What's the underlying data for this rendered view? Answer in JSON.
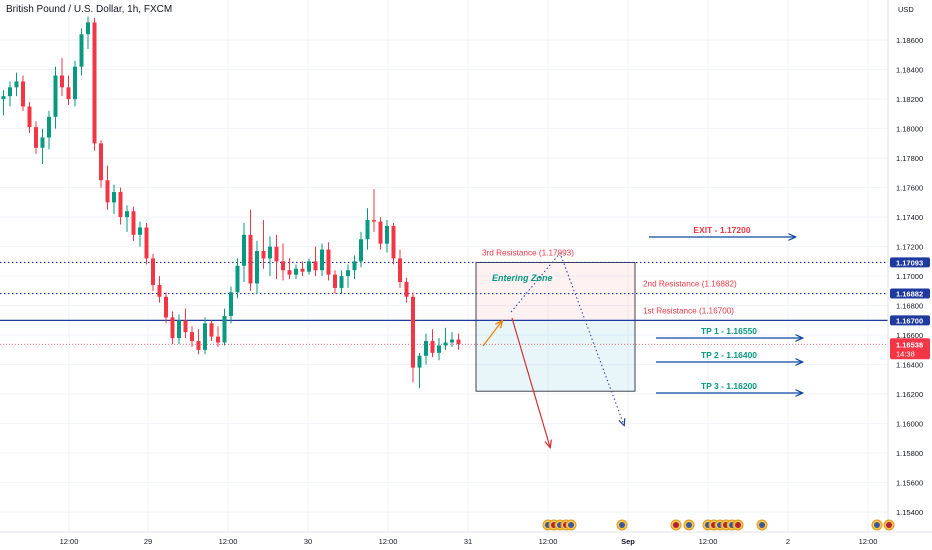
{
  "chart_data": {
    "type": "candlestick",
    "title": "British Pound / U.S. Dollar, 1h, FXCM",
    "currency": "USD",
    "ylim": [
      1.1535,
      1.1875
    ],
    "y_ticks": [
      "1.18600",
      "1.18400",
      "1.18200",
      "1.18000",
      "1.17800",
      "1.17600",
      "1.17400",
      "1.17200",
      "1.17000",
      "1.16800",
      "1.16600",
      "1.16400",
      "1.16200",
      "1.16000",
      "1.15800",
      "1.15600",
      "1.15400"
    ],
    "x_ticks": [
      "12:00",
      "29",
      "12:00",
      "30",
      "12:00",
      "31",
      "12:00",
      "Sep",
      "12:00",
      "2",
      "12:00"
    ],
    "current_price": "1.16538",
    "countdown": "14:38",
    "colors": {
      "up": "#089981",
      "down": "#f23645",
      "resistance": "#f23645",
      "target": "#0d47a1",
      "zone_text": "#089981",
      "price_line": "#1e3a9e"
    },
    "candles": [
      {
        "o": 1.182,
        "h": 1.1826,
        "l": 1.1809,
        "c": 1.1822
      },
      {
        "o": 1.1822,
        "h": 1.1832,
        "l": 1.1815,
        "c": 1.1828
      },
      {
        "o": 1.1828,
        "h": 1.1838,
        "l": 1.1822,
        "c": 1.1832
      },
      {
        "o": 1.1832,
        "h": 1.1836,
        "l": 1.1812,
        "c": 1.1815
      },
      {
        "o": 1.1815,
        "h": 1.1818,
        "l": 1.1797,
        "c": 1.1801
      },
      {
        "o": 1.1801,
        "h": 1.1805,
        "l": 1.1783,
        "c": 1.1787
      },
      {
        "o": 1.1787,
        "h": 1.18,
        "l": 1.1776,
        "c": 1.1794
      },
      {
        "o": 1.1794,
        "h": 1.1812,
        "l": 1.1786,
        "c": 1.1808
      },
      {
        "o": 1.1808,
        "h": 1.1842,
        "l": 1.18,
        "c": 1.1836
      },
      {
        "o": 1.1836,
        "h": 1.1848,
        "l": 1.1822,
        "c": 1.1828
      },
      {
        "o": 1.1828,
        "h": 1.1836,
        "l": 1.1816,
        "c": 1.182
      },
      {
        "o": 1.182,
        "h": 1.1846,
        "l": 1.1815,
        "c": 1.1842
      },
      {
        "o": 1.1842,
        "h": 1.1868,
        "l": 1.1836,
        "c": 1.1864
      },
      {
        "o": 1.1864,
        "h": 1.1876,
        "l": 1.1854,
        "c": 1.1872
      },
      {
        "o": 1.1872,
        "h": 1.1875,
        "l": 1.1785,
        "c": 1.179
      },
      {
        "o": 1.179,
        "h": 1.1792,
        "l": 1.176,
        "c": 1.1765
      },
      {
        "o": 1.1765,
        "h": 1.1775,
        "l": 1.1745,
        "c": 1.175
      },
      {
        "o": 1.175,
        "h": 1.1762,
        "l": 1.1742,
        "c": 1.1757
      },
      {
        "o": 1.1757,
        "h": 1.176,
        "l": 1.1735,
        "c": 1.174
      },
      {
        "o": 1.174,
        "h": 1.1748,
        "l": 1.173,
        "c": 1.1744
      },
      {
        "o": 1.1744,
        "h": 1.1747,
        "l": 1.1724,
        "c": 1.1728
      },
      {
        "o": 1.1728,
        "h": 1.1737,
        "l": 1.172,
        "c": 1.1733
      },
      {
        "o": 1.1733,
        "h": 1.1736,
        "l": 1.1708,
        "c": 1.1712
      },
      {
        "o": 1.1712,
        "h": 1.1715,
        "l": 1.169,
        "c": 1.1694
      },
      {
        "o": 1.1694,
        "h": 1.17,
        "l": 1.1682,
        "c": 1.1686
      },
      {
        "o": 1.1686,
        "h": 1.1689,
        "l": 1.1668,
        "c": 1.1672
      },
      {
        "o": 1.1672,
        "h": 1.1676,
        "l": 1.1654,
        "c": 1.1658
      },
      {
        "o": 1.1658,
        "h": 1.1674,
        "l": 1.1654,
        "c": 1.167
      },
      {
        "o": 1.167,
        "h": 1.1678,
        "l": 1.1658,
        "c": 1.1662
      },
      {
        "o": 1.1662,
        "h": 1.1666,
        "l": 1.1652,
        "c": 1.1656
      },
      {
        "o": 1.1656,
        "h": 1.1664,
        "l": 1.1647,
        "c": 1.165
      },
      {
        "o": 1.165,
        "h": 1.1672,
        "l": 1.1647,
        "c": 1.1668
      },
      {
        "o": 1.1668,
        "h": 1.167,
        "l": 1.1656,
        "c": 1.1659
      },
      {
        "o": 1.1659,
        "h": 1.1666,
        "l": 1.1652,
        "c": 1.1655
      },
      {
        "o": 1.1655,
        "h": 1.1678,
        "l": 1.1653,
        "c": 1.1673
      },
      {
        "o": 1.1673,
        "h": 1.1693,
        "l": 1.1668,
        "c": 1.1689
      },
      {
        "o": 1.1689,
        "h": 1.1712,
        "l": 1.1685,
        "c": 1.1707
      },
      {
        "o": 1.1707,
        "h": 1.1736,
        "l": 1.1696,
        "c": 1.1728
      },
      {
        "o": 1.1728,
        "h": 1.1745,
        "l": 1.169,
        "c": 1.1695
      },
      {
        "o": 1.1695,
        "h": 1.1724,
        "l": 1.1688,
        "c": 1.1717
      },
      {
        "o": 1.1717,
        "h": 1.1738,
        "l": 1.1705,
        "c": 1.1712
      },
      {
        "o": 1.1712,
        "h": 1.1727,
        "l": 1.17,
        "c": 1.172
      },
      {
        "o": 1.172,
        "h": 1.1728,
        "l": 1.1698,
        "c": 1.171
      },
      {
        "o": 1.171,
        "h": 1.1722,
        "l": 1.1697,
        "c": 1.1704
      },
      {
        "o": 1.1704,
        "h": 1.1712,
        "l": 1.1698,
        "c": 1.1701
      },
      {
        "o": 1.1701,
        "h": 1.1708,
        "l": 1.1698,
        "c": 1.1705
      },
      {
        "o": 1.1705,
        "h": 1.171,
        "l": 1.17,
        "c": 1.1703
      },
      {
        "o": 1.1703,
        "h": 1.1712,
        "l": 1.1701,
        "c": 1.171
      },
      {
        "o": 1.171,
        "h": 1.172,
        "l": 1.17,
        "c": 1.1704
      },
      {
        "o": 1.1704,
        "h": 1.1722,
        "l": 1.17,
        "c": 1.1718
      },
      {
        "o": 1.1718,
        "h": 1.1723,
        "l": 1.1697,
        "c": 1.1701
      },
      {
        "o": 1.1701,
        "h": 1.1704,
        "l": 1.1688,
        "c": 1.1692
      },
      {
        "o": 1.1692,
        "h": 1.1704,
        "l": 1.1688,
        "c": 1.17
      },
      {
        "o": 1.17,
        "h": 1.1708,
        "l": 1.1692,
        "c": 1.1704
      },
      {
        "o": 1.1704,
        "h": 1.1714,
        "l": 1.1698,
        "c": 1.171
      },
      {
        "o": 1.171,
        "h": 1.173,
        "l": 1.1706,
        "c": 1.1725
      },
      {
        "o": 1.1725,
        "h": 1.1746,
        "l": 1.1718,
        "c": 1.1738
      },
      {
        "o": 1.1738,
        "h": 1.1759,
        "l": 1.173,
        "c": 1.1737
      },
      {
        "o": 1.1737,
        "h": 1.174,
        "l": 1.1718,
        "c": 1.1722
      },
      {
        "o": 1.1722,
        "h": 1.1738,
        "l": 1.1716,
        "c": 1.1734
      },
      {
        "o": 1.1734,
        "h": 1.1736,
        "l": 1.1708,
        "c": 1.1712
      },
      {
        "o": 1.1712,
        "h": 1.1718,
        "l": 1.1692,
        "c": 1.1696
      },
      {
        "o": 1.1696,
        "h": 1.1699,
        "l": 1.1682,
        "c": 1.1686
      },
      {
        "o": 1.1686,
        "h": 1.1689,
        "l": 1.1628,
        "c": 1.1638
      },
      {
        "o": 1.1638,
        "h": 1.1648,
        "l": 1.1624,
        "c": 1.1646
      },
      {
        "o": 1.1646,
        "h": 1.1661,
        "l": 1.164,
        "c": 1.1656
      },
      {
        "o": 1.1656,
        "h": 1.1664,
        "l": 1.1645,
        "c": 1.1648
      },
      {
        "o": 1.1648,
        "h": 1.1658,
        "l": 1.1643,
        "c": 1.1653
      },
      {
        "o": 1.1653,
        "h": 1.1665,
        "l": 1.165,
        "c": 1.1655
      },
      {
        "o": 1.1655,
        "h": 1.1662,
        "l": 1.1652,
        "c": 1.1657
      },
      {
        "o": 1.1657,
        "h": 1.1661,
        "l": 1.165,
        "c": 1.1654
      }
    ],
    "levels": [
      {
        "price": 1.17093,
        "label": "3rd Resistance (1.17093)",
        "tag": "1.17093",
        "style": "dotted"
      },
      {
        "price": 1.16882,
        "label": "2nd Resistance (1.16882)",
        "tag": "1.16882",
        "style": "dotted"
      },
      {
        "price": 1.167,
        "label": "1st Resistance (1.16700)",
        "tag": "1.16700",
        "style": "solid"
      }
    ],
    "targets": [
      {
        "label": "EXIT - 1.17200",
        "price": 1.172,
        "color": "#f23645"
      },
      {
        "label": "TP 1 - 1.16550",
        "price": 1.1655,
        "color": "#089981"
      },
      {
        "label": "TP 2 - 1.16400",
        "price": 1.164,
        "color": "#089981"
      },
      {
        "label": "TP 3 - 1.16200",
        "price": 1.162,
        "color": "#089981"
      }
    ],
    "zone": {
      "label": "Entering Zone",
      "top": 1.17093,
      "mid": 1.167,
      "bottom": 1.1622
    }
  }
}
